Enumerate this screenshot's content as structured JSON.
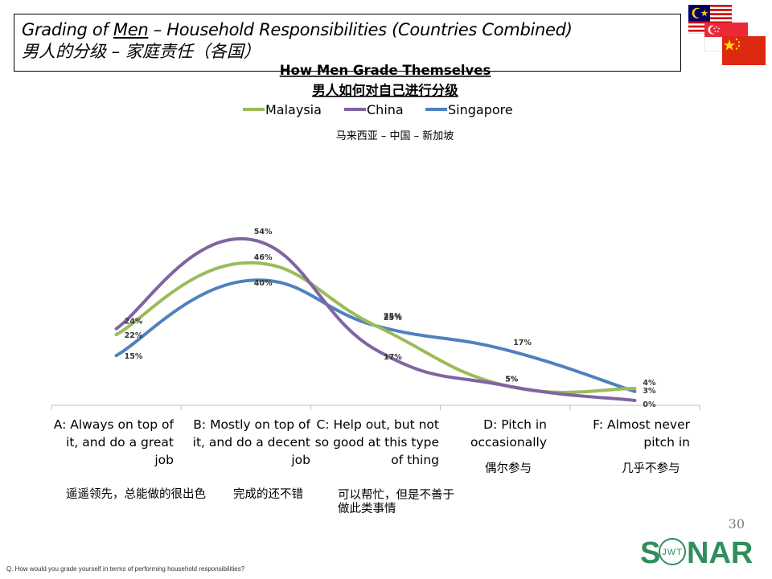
{
  "header": {
    "title_prefix": "Grading of ",
    "title_underlined": "Men",
    "title_suffix": " – Household Responsibilities (Countries Combined)",
    "title_cn": "男人的分级 – 家庭责任（各国）"
  },
  "flags": [
    {
      "name": "malaysia-flag"
    },
    {
      "name": "singapore-flag"
    },
    {
      "name": "china-flag"
    }
  ],
  "colors": {
    "malaysia": "#9bbb59",
    "china": "#8064a2",
    "singapore": "#4f81bd",
    "axis": "#bfbfbf",
    "sonar_green": "#2f8f5b"
  },
  "chart_data": {
    "type": "line",
    "title": "How Men Grade Themselves",
    "title_cn": "男人如何对自己进行分级",
    "subtitle_cn": "马来西亚 – 中国 – 新加坡",
    "legend_position": "top",
    "categories": [
      "A: Always on top of it, and do a great job",
      "B: Mostly on top of it, and do a decent job",
      "C: Help out, but not so good at this type of thing",
      "D: Pitch in occasionally",
      "F: Almost never pitch in"
    ],
    "categories_cn": [
      "遥遥领先，总能做的很出色",
      "完成的还不错",
      "可以帮忙，但是不善于做此类事情",
      "偶尔参与",
      "几乎不参与"
    ],
    "series": [
      {
        "name": "Malaysia",
        "key": "malaysia",
        "values": [
          22,
          46,
          25,
          5,
          4
        ],
        "labels": [
          "22%",
          "46%",
          "25%",
          "5%",
          "4%"
        ]
      },
      {
        "name": "China",
        "key": "china",
        "values": [
          24,
          54,
          17,
          5,
          0
        ],
        "labels": [
          "24%",
          "54%",
          "17%",
          "5%",
          "0%"
        ]
      },
      {
        "name": "Singapore",
        "key": "singapore",
        "values": [
          15,
          40,
          25,
          17,
          3
        ],
        "labels": [
          "15%",
          "40%",
          "25%",
          "17%",
          "3%"
        ]
      }
    ],
    "ylim": [
      0,
      60
    ],
    "grid": false
  },
  "page_number": "30",
  "footnote": "Q. How would you grade yourself in terms of performing household responsibilities?",
  "logo": {
    "text_left": "S",
    "text_right": "NAR",
    "inner_text": "JWT"
  }
}
